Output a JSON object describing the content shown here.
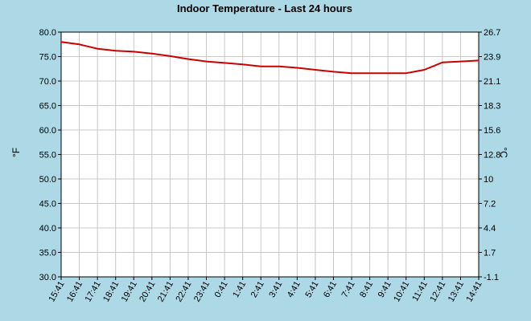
{
  "chart_data": {
    "type": "line",
    "title": "Indoor Temperature - Last 24 hours",
    "ylabel_left": "°F",
    "ylabel_right": "°C",
    "ylim_left": [
      30.0,
      80.0
    ],
    "yticks_left": [
      "30.0",
      "35.0",
      "40.0",
      "45.0",
      "50.0",
      "55.0",
      "60.0",
      "65.0",
      "70.0",
      "75.0",
      "80.0"
    ],
    "yticks_right": [
      "-1.1",
      "1.7",
      "4.4",
      "7.2",
      "10",
      "12.8",
      "15.6",
      "18.3",
      "21.1",
      "23.9",
      "26.7"
    ],
    "categories": [
      "15:41",
      "16:41",
      "17:41",
      "18:41",
      "19:41",
      "20:41",
      "21:41",
      "22:41",
      "23:41",
      "0:41",
      "1:41",
      "2:41",
      "3:41",
      "4:41",
      "5:41",
      "6:41",
      "7:41",
      "8:41",
      "9:41",
      "10:41",
      "11:41",
      "12:41",
      "13:41",
      "14:41"
    ],
    "grid": true,
    "series": [
      {
        "color": "#cc0000",
        "values": [
          78.0,
          77.5,
          76.6,
          76.2,
          76.0,
          75.6,
          75.1,
          74.5,
          74.0,
          73.7,
          73.4,
          73.0,
          73.0,
          72.7,
          72.3,
          71.9,
          71.6,
          71.6,
          71.6,
          71.6,
          72.3,
          73.8,
          74.0,
          74.2
        ]
      }
    ]
  }
}
